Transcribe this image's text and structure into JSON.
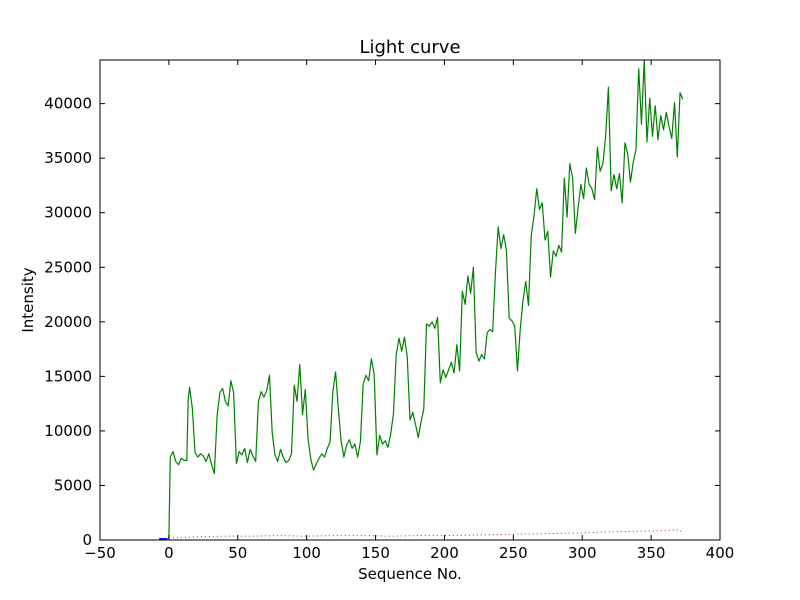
{
  "chart_data": {
    "type": "line",
    "title": "Light curve",
    "xlabel": "Sequence No.",
    "ylabel": "Intensity",
    "xlim": [
      -50,
      400
    ],
    "ylim": [
      0,
      44000
    ],
    "x_ticks": [
      -50,
      0,
      50,
      100,
      150,
      200,
      250,
      300,
      350,
      400
    ],
    "y_ticks": [
      0,
      5000,
      10000,
      15000,
      20000,
      25000,
      30000,
      35000,
      40000
    ],
    "grid": false,
    "legend": "none",
    "series": [
      {
        "color": "#008000",
        "style": "solid",
        "points": [
          [
            0,
            200
          ],
          [
            1,
            7600
          ],
          [
            3,
            8100
          ],
          [
            5,
            7200
          ],
          [
            7,
            6900
          ],
          [
            9,
            7500
          ],
          [
            11,
            7300
          ],
          [
            13,
            7300
          ],
          [
            14,
            12800
          ],
          [
            15,
            14000
          ],
          [
            17,
            12100
          ],
          [
            19,
            8000
          ],
          [
            21,
            7600
          ],
          [
            23,
            7900
          ],
          [
            25,
            7700
          ],
          [
            27,
            7200
          ],
          [
            29,
            7900
          ],
          [
            31,
            6900
          ],
          [
            33,
            6100
          ],
          [
            35,
            11400
          ],
          [
            37,
            13500
          ],
          [
            39,
            13900
          ],
          [
            41,
            12700
          ],
          [
            43,
            12300
          ],
          [
            45,
            14600
          ],
          [
            47,
            13500
          ],
          [
            49,
            7000
          ],
          [
            51,
            8100
          ],
          [
            53,
            7800
          ],
          [
            55,
            8400
          ],
          [
            57,
            7100
          ],
          [
            59,
            8300
          ],
          [
            61,
            7700
          ],
          [
            63,
            7200
          ],
          [
            65,
            12700
          ],
          [
            67,
            13600
          ],
          [
            69,
            13100
          ],
          [
            71,
            13700
          ],
          [
            73,
            15100
          ],
          [
            75,
            9800
          ],
          [
            77,
            7800
          ],
          [
            79,
            7200
          ],
          [
            81,
            8300
          ],
          [
            83,
            7600
          ],
          [
            85,
            7100
          ],
          [
            87,
            7300
          ],
          [
            89,
            7900
          ],
          [
            91,
            14200
          ],
          [
            93,
            12700
          ],
          [
            95,
            16100
          ],
          [
            97,
            11500
          ],
          [
            99,
            13800
          ],
          [
            101,
            9300
          ],
          [
            103,
            7400
          ],
          [
            105,
            6400
          ],
          [
            107,
            7000
          ],
          [
            109,
            7500
          ],
          [
            111,
            7900
          ],
          [
            113,
            7600
          ],
          [
            115,
            8400
          ],
          [
            117,
            9000
          ],
          [
            119,
            13600
          ],
          [
            121,
            15400
          ],
          [
            123,
            12000
          ],
          [
            125,
            9100
          ],
          [
            127,
            7600
          ],
          [
            129,
            8700
          ],
          [
            131,
            9200
          ],
          [
            133,
            8400
          ],
          [
            135,
            8800
          ],
          [
            137,
            7600
          ],
          [
            139,
            9000
          ],
          [
            141,
            14300
          ],
          [
            143,
            15100
          ],
          [
            145,
            14600
          ],
          [
            147,
            16600
          ],
          [
            149,
            15200
          ],
          [
            151,
            7800
          ],
          [
            153,
            9600
          ],
          [
            155,
            8800
          ],
          [
            157,
            9100
          ],
          [
            159,
            8500
          ],
          [
            161,
            9700
          ],
          [
            163,
            11600
          ],
          [
            165,
            17000
          ],
          [
            167,
            18500
          ],
          [
            169,
            17300
          ],
          [
            171,
            18600
          ],
          [
            173,
            16800
          ],
          [
            175,
            11000
          ],
          [
            177,
            11700
          ],
          [
            179,
            10600
          ],
          [
            181,
            9400
          ],
          [
            183,
            10800
          ],
          [
            185,
            12000
          ],
          [
            187,
            19800
          ],
          [
            189,
            19600
          ],
          [
            191,
            20000
          ],
          [
            193,
            19400
          ],
          [
            195,
            20400
          ],
          [
            197,
            14400
          ],
          [
            199,
            15600
          ],
          [
            201,
            14900
          ],
          [
            203,
            15600
          ],
          [
            205,
            16300
          ],
          [
            207,
            15300
          ],
          [
            209,
            17900
          ],
          [
            211,
            15500
          ],
          [
            213,
            22800
          ],
          [
            215,
            21600
          ],
          [
            217,
            24200
          ],
          [
            219,
            22600
          ],
          [
            221,
            25000
          ],
          [
            223,
            17200
          ],
          [
            225,
            16400
          ],
          [
            227,
            17000
          ],
          [
            229,
            16600
          ],
          [
            231,
            19000
          ],
          [
            233,
            19300
          ],
          [
            235,
            19100
          ],
          [
            237,
            24500
          ],
          [
            239,
            28700
          ],
          [
            241,
            26700
          ],
          [
            243,
            28000
          ],
          [
            245,
            26500
          ],
          [
            247,
            20300
          ],
          [
            249,
            20100
          ],
          [
            251,
            19600
          ],
          [
            253,
            15500
          ],
          [
            255,
            19300
          ],
          [
            257,
            21900
          ],
          [
            259,
            23700
          ],
          [
            261,
            21500
          ],
          [
            263,
            27900
          ],
          [
            265,
            29700
          ],
          [
            267,
            32200
          ],
          [
            269,
            30300
          ],
          [
            271,
            30900
          ],
          [
            273,
            27500
          ],
          [
            275,
            28300
          ],
          [
            277,
            24100
          ],
          [
            279,
            26500
          ],
          [
            281,
            26000
          ],
          [
            283,
            27000
          ],
          [
            285,
            26400
          ],
          [
            287,
            33200
          ],
          [
            289,
            29600
          ],
          [
            291,
            34500
          ],
          [
            293,
            33200
          ],
          [
            295,
            28100
          ],
          [
            297,
            30400
          ],
          [
            299,
            32600
          ],
          [
            301,
            31300
          ],
          [
            303,
            34100
          ],
          [
            305,
            32600
          ],
          [
            307,
            32200
          ],
          [
            309,
            31200
          ],
          [
            311,
            36000
          ],
          [
            313,
            33800
          ],
          [
            315,
            34500
          ],
          [
            317,
            37000
          ],
          [
            319,
            41500
          ],
          [
            321,
            32000
          ],
          [
            323,
            33500
          ],
          [
            325,
            32200
          ],
          [
            327,
            33600
          ],
          [
            329,
            30900
          ],
          [
            331,
            36400
          ],
          [
            333,
            35400
          ],
          [
            335,
            32800
          ],
          [
            337,
            34600
          ],
          [
            339,
            35800
          ],
          [
            341,
            43200
          ],
          [
            343,
            38100
          ],
          [
            345,
            44000
          ],
          [
            347,
            36500
          ],
          [
            349,
            40500
          ],
          [
            351,
            37000
          ],
          [
            353,
            39800
          ],
          [
            355,
            36700
          ],
          [
            357,
            38900
          ],
          [
            359,
            37600
          ],
          [
            361,
            39200
          ],
          [
            363,
            37900
          ],
          [
            365,
            36800
          ],
          [
            367,
            40100
          ],
          [
            369,
            35100
          ],
          [
            371,
            41000
          ],
          [
            373,
            40400
          ]
        ]
      },
      {
        "color": "#ff0000",
        "style": "dotted",
        "points": [
          [
            0,
            150
          ],
          [
            20,
            300
          ],
          [
            40,
            350
          ],
          [
            60,
            350
          ],
          [
            80,
            400
          ],
          [
            100,
            350
          ],
          [
            120,
            400
          ],
          [
            140,
            400
          ],
          [
            160,
            350
          ],
          [
            180,
            400
          ],
          [
            200,
            400
          ],
          [
            220,
            450
          ],
          [
            240,
            500
          ],
          [
            260,
            550
          ],
          [
            280,
            600
          ],
          [
            300,
            650
          ],
          [
            320,
            750
          ],
          [
            340,
            800
          ],
          [
            360,
            850
          ],
          [
            370,
            950
          ],
          [
            373,
            700
          ]
        ]
      },
      {
        "color": "#0000ff",
        "style": "solid-thick",
        "points": [
          [
            -7,
            0
          ],
          [
            -1,
            0
          ]
        ]
      }
    ]
  }
}
